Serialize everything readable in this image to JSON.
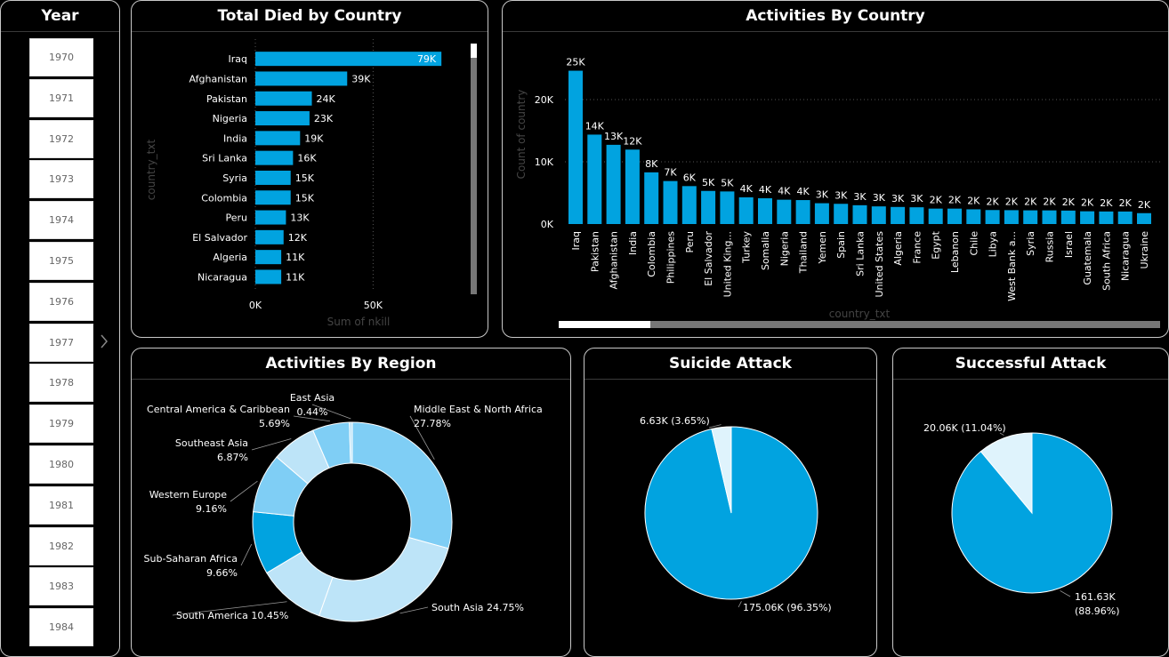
{
  "year_slicer": {
    "title": "Year",
    "years": [
      "1970",
      "1971",
      "1972",
      "1973",
      "1974",
      "1975",
      "1976",
      "1977",
      "1978",
      "1979",
      "1980",
      "1981",
      "1982",
      "1983",
      "1984"
    ]
  },
  "died_panel": {
    "title": "Total Died by Country"
  },
  "activities_country_panel": {
    "title": "Activities By Country"
  },
  "region_panel": {
    "title": "Activities By Region"
  },
  "suicide_panel": {
    "title": "Suicide Attack"
  },
  "success_panel": {
    "title": "Successful Attack"
  },
  "colors": {
    "bar": "#01A3E0",
    "light1": "#7FCEF5",
    "light2": "#BDE4F8",
    "light3": "#DFF3FC",
    "grid": "#555555"
  },
  "chart_data": [
    {
      "id": "died",
      "type": "bar",
      "orientation": "horizontal",
      "categories": [
        "Iraq",
        "Afghanistan",
        "Pakistan",
        "Nigeria",
        "India",
        "Sri Lanka",
        "Syria",
        "Colombia",
        "Peru",
        "El Salvador",
        "Algeria",
        "Nicaragua"
      ],
      "values": [
        79000,
        39000,
        24000,
        23000,
        19000,
        16000,
        15000,
        15000,
        13000,
        12000,
        11000,
        11000
      ],
      "labels": [
        "79K",
        "39K",
        "24K",
        "23K",
        "19K",
        "16K",
        "15K",
        "15K",
        "13K",
        "12K",
        "11K",
        "11K"
      ],
      "xlabel": "Sum of nkill",
      "ylabel": "country_txt",
      "xticks": [
        "0K",
        "50K"
      ],
      "xlim": [
        0,
        88000
      ]
    },
    {
      "id": "activities_country",
      "type": "bar",
      "categories": [
        "Iraq",
        "Pakistan",
        "Afghanistan",
        "India",
        "Colombia",
        "Philippines",
        "Peru",
        "El Salvador",
        "United King...",
        "Turkey",
        "Somalia",
        "Nigeria",
        "Thailand",
        "Yemen",
        "Spain",
        "Sri Lanka",
        "United States",
        "Algeria",
        "France",
        "Egypt",
        "Lebanon",
        "Chile",
        "Libya",
        "West Bank a...",
        "Syria",
        "Russia",
        "Israel",
        "Guatemala",
        "South Africa",
        "Nicaragua",
        "Ukraine"
      ],
      "values": [
        24636,
        14368,
        12731,
        11960,
        8306,
        6908,
        6096,
        5320,
        5235,
        4292,
        4142,
        3907,
        3849,
        3346,
        3249,
        3022,
        2836,
        2743,
        2693,
        2479,
        2478,
        2365,
        2249,
        2228,
        2201,
        2194,
        2162,
        2050,
        2016,
        2010,
        1750
      ],
      "labels": [
        "25K",
        "14K",
        "13K",
        "12K",
        "8K",
        "7K",
        "6K",
        "5K",
        "5K",
        "4K",
        "4K",
        "4K",
        "4K",
        "3K",
        "3K",
        "3K",
        "3K",
        "3K",
        "3K",
        "2K",
        "2K",
        "2K",
        "2K",
        "2K",
        "2K",
        "2K",
        "2K",
        "2K",
        "2K",
        "2K",
        "2K"
      ],
      "xlabel": "country_txt",
      "ylabel": "Count of country",
      "yticks": [
        0,
        10000,
        20000
      ],
      "ytick_labels": [
        "0K",
        "10K",
        "20K"
      ],
      "ylim": [
        0,
        27000
      ]
    },
    {
      "id": "region",
      "type": "pie",
      "donut": true,
      "slices": [
        {
          "label": "Middle East & North Africa",
          "pct": 27.78,
          "pct_label": "27.78%"
        },
        {
          "label": "South Asia",
          "pct": 24.75,
          "pct_label": "24.75%"
        },
        {
          "label": "South America",
          "pct": 10.45,
          "pct_label": "10.45%"
        },
        {
          "label": "Sub-Saharan Africa",
          "pct": 9.66,
          "pct_label": "9.66%"
        },
        {
          "label": "Western Europe",
          "pct": 9.16,
          "pct_label": "9.16%"
        },
        {
          "label": "Southeast Asia",
          "pct": 6.87,
          "pct_label": "6.87%"
        },
        {
          "label": "Central America & Caribbean",
          "pct": 5.69,
          "pct_label": "5.69%"
        },
        {
          "label": "East Asia",
          "pct": 0.44,
          "pct_label": "0.44%"
        }
      ]
    },
    {
      "id": "suicide",
      "type": "pie",
      "slices": [
        {
          "value": 175060,
          "pct": 96.35,
          "label": "175.06K (96.35%)"
        },
        {
          "value": 6630,
          "pct": 3.65,
          "label": "6.63K (3.65%)"
        }
      ]
    },
    {
      "id": "success",
      "type": "pie",
      "slices": [
        {
          "value": 161630,
          "pct": 88.96,
          "label": "161.63K (88.96%)"
        },
        {
          "value": 20060,
          "pct": 11.04,
          "label": "20.06K (11.04%)"
        }
      ]
    }
  ]
}
